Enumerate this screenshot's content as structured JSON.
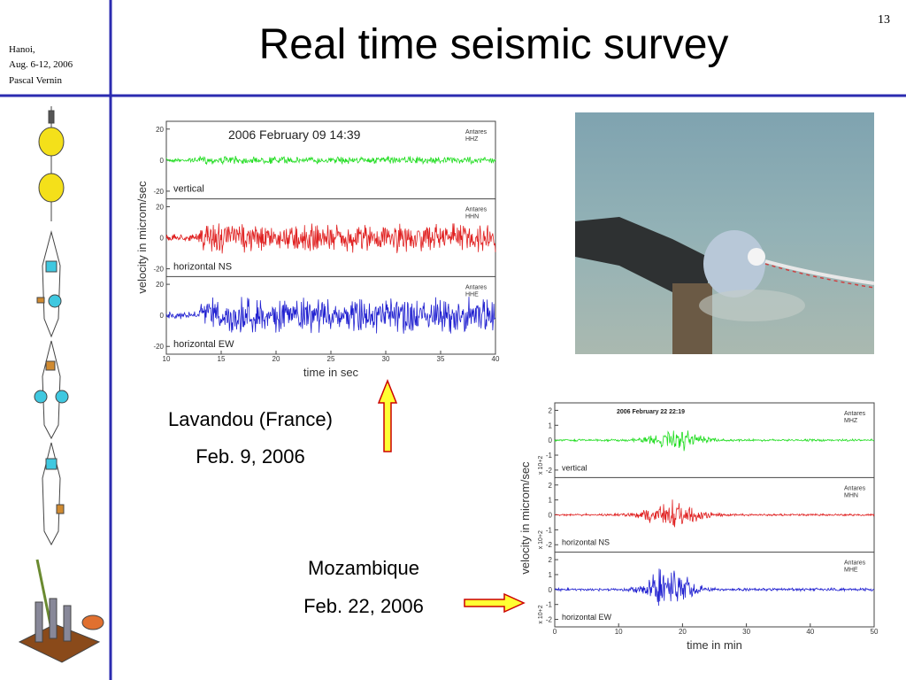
{
  "header": {
    "place": "Hanoi,",
    "dates": "Aug. 6-12, 2006",
    "author": "Pascal Vernin"
  },
  "title": "Real time seismic survey",
  "page_number": "13",
  "seismograms": [
    {
      "timestamp": "2006  February  09  14:39",
      "y_label": "velocity  in  microm/sec",
      "x_label": "time  in  sec",
      "x_ticks": [
        10,
        15,
        20,
        25,
        30,
        35,
        40
      ],
      "panels": [
        {
          "station": "Antares",
          "channel": "HHZ",
          "component": "vertical",
          "color": "#22dd22",
          "y_ticks": [
            20,
            0,
            -20
          ]
        },
        {
          "station": "Antares",
          "channel": "HHN",
          "component": "horizontal  NS",
          "color": "#e02020",
          "y_ticks": [
            20,
            0,
            -20
          ]
        },
        {
          "station": "Antares",
          "channel": "HHE",
          "component": "horizontal  EW",
          "color": "#2020d0",
          "y_ticks": [
            20,
            0,
            -20
          ]
        }
      ]
    },
    {
      "timestamp": "2006  February  22  22:19",
      "y_label": "velocity  in  microm/sec",
      "x_label": "time  in  min",
      "x_ticks": [
        0,
        10,
        20,
        30,
        40,
        50
      ],
      "panels": [
        {
          "station": "Antares",
          "channel": "MHZ",
          "component": "vertical",
          "color": "#22dd22",
          "scale": "x 10+2",
          "y_ticks": [
            2,
            1,
            0,
            -1,
            -2
          ]
        },
        {
          "station": "Antares",
          "channel": "MHN",
          "component": "horizontal  NS",
          "color": "#e02020",
          "scale": "x 10+2",
          "y_ticks": [
            2,
            1,
            0,
            -1,
            -2
          ]
        },
        {
          "station": "Antares",
          "channel": "MHE",
          "component": "horizontal  EW",
          "color": "#2020d0",
          "scale": "x 10+2",
          "y_ticks": [
            2,
            1,
            0,
            -1,
            -2
          ]
        }
      ]
    }
  ],
  "captions": [
    {
      "place": "Lavandou (France)",
      "date": "Feb. 9, 2006"
    },
    {
      "place": "Mozambique",
      "date": "Feb. 22,  2006"
    }
  ]
}
